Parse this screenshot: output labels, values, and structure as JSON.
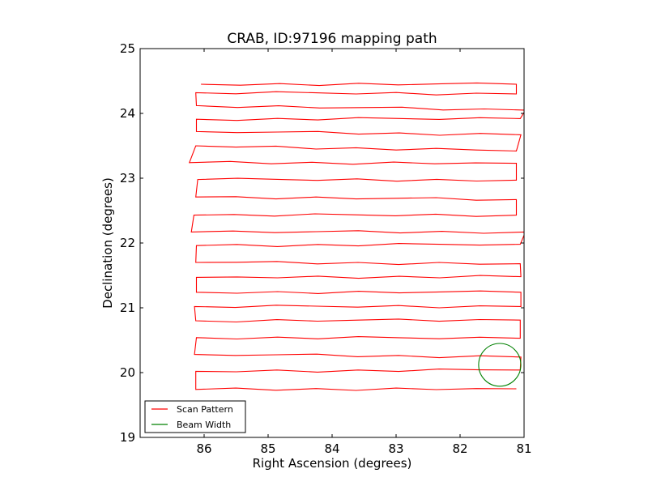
{
  "chart_data": {
    "type": "line",
    "title": "CRAB, ID:97196 mapping path",
    "xlabel": "Right Ascension (degrees)",
    "ylabel": "Declination (degrees)",
    "xlim": [
      87.0,
      81.0
    ],
    "ylim": [
      19,
      25
    ],
    "xticks": [
      86,
      85,
      84,
      83,
      82,
      81
    ],
    "yticks": [
      19,
      20,
      21,
      22,
      23,
      24,
      25
    ],
    "grid": false,
    "legend_position": "lower-left",
    "series": [
      {
        "name": "Scan Pattern",
        "color": "#ff0000",
        "rows": [
          {
            "dec_left": 24.45,
            "dec_right": 24.45,
            "ra_left": 86.05,
            "ra_right": 81.12
          },
          {
            "dec_left": 24.32,
            "dec_right": 24.3,
            "ra_left": 86.13,
            "ra_right": 81.12
          },
          {
            "dec_left": 24.12,
            "dec_right": 24.05,
            "ra_left": 86.12,
            "ra_right": 80.98
          },
          {
            "dec_left": 23.91,
            "dec_right": 23.92,
            "ra_left": 86.12,
            "ra_right": 81.06
          },
          {
            "dec_left": 23.72,
            "dec_right": 23.67,
            "ra_left": 86.12,
            "ra_right": 81.05
          },
          {
            "dec_left": 23.5,
            "dec_right": 23.42,
            "ra_left": 86.13,
            "ra_right": 81.12
          },
          {
            "dec_left": 23.24,
            "dec_right": 23.23,
            "ra_left": 86.23,
            "ra_right": 81.12
          },
          {
            "dec_left": 22.98,
            "dec_right": 22.97,
            "ra_left": 86.1,
            "ra_right": 81.12
          },
          {
            "dec_left": 22.71,
            "dec_right": 22.67,
            "ra_left": 86.13,
            "ra_right": 81.12
          },
          {
            "dec_left": 22.43,
            "dec_right": 22.43,
            "ra_left": 86.16,
            "ra_right": 81.12
          },
          {
            "dec_left": 22.17,
            "dec_right": 22.17,
            "ra_left": 86.2,
            "ra_right": 80.98
          },
          {
            "dec_left": 21.96,
            "dec_right": 21.98,
            "ra_left": 86.12,
            "ra_right": 81.06
          },
          {
            "dec_left": 21.7,
            "dec_right": 21.68,
            "ra_left": 86.13,
            "ra_right": 81.06
          },
          {
            "dec_left": 21.47,
            "dec_right": 21.48,
            "ra_left": 86.12,
            "ra_right": 81.05
          },
          {
            "dec_left": 21.24,
            "dec_right": 21.24,
            "ra_left": 86.12,
            "ra_right": 81.05
          },
          {
            "dec_left": 21.02,
            "dec_right": 21.02,
            "ra_left": 86.15,
            "ra_right": 81.05
          },
          {
            "dec_left": 20.8,
            "dec_right": 20.81,
            "ra_left": 86.13,
            "ra_right": 81.06
          },
          {
            "dec_left": 20.54,
            "dec_right": 20.53,
            "ra_left": 86.12,
            "ra_right": 81.06
          },
          {
            "dec_left": 20.28,
            "dec_right": 20.24,
            "ra_left": 86.15,
            "ra_right": 81.05
          },
          {
            "dec_left": 20.02,
            "dec_right": 20.04,
            "ra_left": 86.13,
            "ra_right": 81.06
          },
          {
            "dec_left": 19.74,
            "dec_right": 19.75,
            "ra_left": 86.13,
            "ra_right": 81.12
          }
        ]
      },
      {
        "name": "Beam Width",
        "color": "#008000",
        "shape": "circle",
        "center": [
          81.38,
          20.12
        ],
        "radius_deg": 0.33
      }
    ]
  }
}
